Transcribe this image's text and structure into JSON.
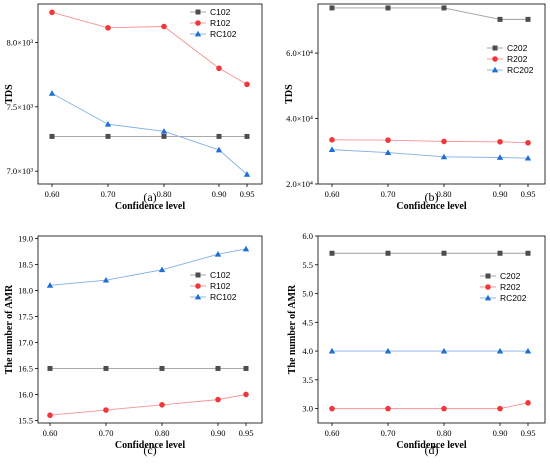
{
  "chart_data": [
    {
      "panel": "(a)",
      "type": "line",
      "xlabel": "Confidence level",
      "ylabel": "TDS",
      "categories": [
        "0.60",
        "0.70",
        "0.80",
        "0.90",
        "0.95"
      ],
      "ylim": [
        6900,
        8300
      ],
      "yticks": [
        7000,
        7500,
        8000
      ],
      "ytick_labels": [
        "7.0×10³",
        "7.5×10³",
        "8.0×10³"
      ],
      "legend_position": "top-right",
      "series": [
        {
          "name": "C102",
          "marker": "square",
          "color": "#4d4d4d",
          "values": [
            7270,
            7270,
            7270,
            7270,
            7270
          ]
        },
        {
          "name": "R102",
          "marker": "circle",
          "color": "#f0383c",
          "values": [
            8235,
            8115,
            8125,
            7800,
            7675
          ]
        },
        {
          "name": "RC102",
          "marker": "triangle",
          "color": "#1f6ed4",
          "values": [
            7605,
            7365,
            7310,
            7165,
            6975
          ]
        }
      ]
    },
    {
      "panel": "(b)",
      "type": "line",
      "xlabel": "Confidence level",
      "ylabel": "TDS",
      "categories": [
        "0.60",
        "0.70",
        "0.80",
        "0.90",
        "0.95"
      ],
      "ylim": [
        20000,
        75000
      ],
      "yticks": [
        20000,
        40000,
        60000
      ],
      "ytick_labels": [
        "2.0×10⁴",
        "4.0×10⁴",
        "6.0×10⁴"
      ],
      "legend_position": "right",
      "series": [
        {
          "name": "C202",
          "marker": "square",
          "color": "#4d4d4d",
          "values": [
            73800,
            73800,
            73800,
            70300,
            70300
          ]
        },
        {
          "name": "R202",
          "marker": "circle",
          "color": "#f0383c",
          "values": [
            33500,
            33400,
            33000,
            32900,
            32600
          ]
        },
        {
          "name": "RC202",
          "marker": "triangle",
          "color": "#1f6ed4",
          "values": [
            30500,
            29600,
            28300,
            28100,
            27900
          ]
        }
      ]
    },
    {
      "panel": "(c)",
      "type": "line",
      "xlabel": "Confidence level",
      "ylabel": "The number of AMR",
      "categories": [
        "0.60",
        "0.70",
        "0.80",
        "0.90",
        "0.95"
      ],
      "ylim": [
        15.45,
        19.05
      ],
      "yticks": [
        15.5,
        16.0,
        16.5,
        17.0,
        17.5,
        18.0,
        18.5,
        19.0
      ],
      "ytick_labels": [
        "15.5",
        "16.0",
        "16.5",
        "17.0",
        "17.5",
        "18.0",
        "18.5",
        "19.0"
      ],
      "legend_position": "right",
      "series": [
        {
          "name": "C102",
          "marker": "square",
          "color": "#4d4d4d",
          "values": [
            16.5,
            16.5,
            16.5,
            16.5,
            16.5
          ]
        },
        {
          "name": "R102",
          "marker": "circle",
          "color": "#f0383c",
          "values": [
            15.6,
            15.7,
            15.8,
            15.9,
            16.0
          ]
        },
        {
          "name": "RC102",
          "marker": "triangle",
          "color": "#1f6ed4",
          "values": [
            18.1,
            18.2,
            18.4,
            18.7,
            18.8
          ]
        }
      ]
    },
    {
      "panel": "(d)",
      "type": "line",
      "xlabel": "Confidence level",
      "ylabel": "The number of AMR",
      "categories": [
        "0.60",
        "0.70",
        "0.80",
        "0.90",
        "0.95"
      ],
      "ylim": [
        2.75,
        6.0
      ],
      "yticks": [
        3.0,
        3.5,
        4.0,
        4.5,
        5.0,
        5.5,
        6.0
      ],
      "ytick_labels": [
        "3.0",
        "3.5",
        "4.0",
        "4.5",
        "5.0",
        "5.5",
        "6.0"
      ],
      "legend_position": "top-right",
      "series": [
        {
          "name": "C202",
          "marker": "square",
          "color": "#4d4d4d",
          "values": [
            5.7,
            5.7,
            5.7,
            5.7,
            5.7
          ]
        },
        {
          "name": "R202",
          "marker": "circle",
          "color": "#f0383c",
          "values": [
            3.0,
            3.0,
            3.0,
            3.0,
            3.1
          ]
        },
        {
          "name": "RC202",
          "marker": "triangle",
          "color": "#1f6ed4",
          "values": [
            4.0,
            4.0,
            4.0,
            4.0,
            4.0
          ]
        }
      ]
    }
  ]
}
